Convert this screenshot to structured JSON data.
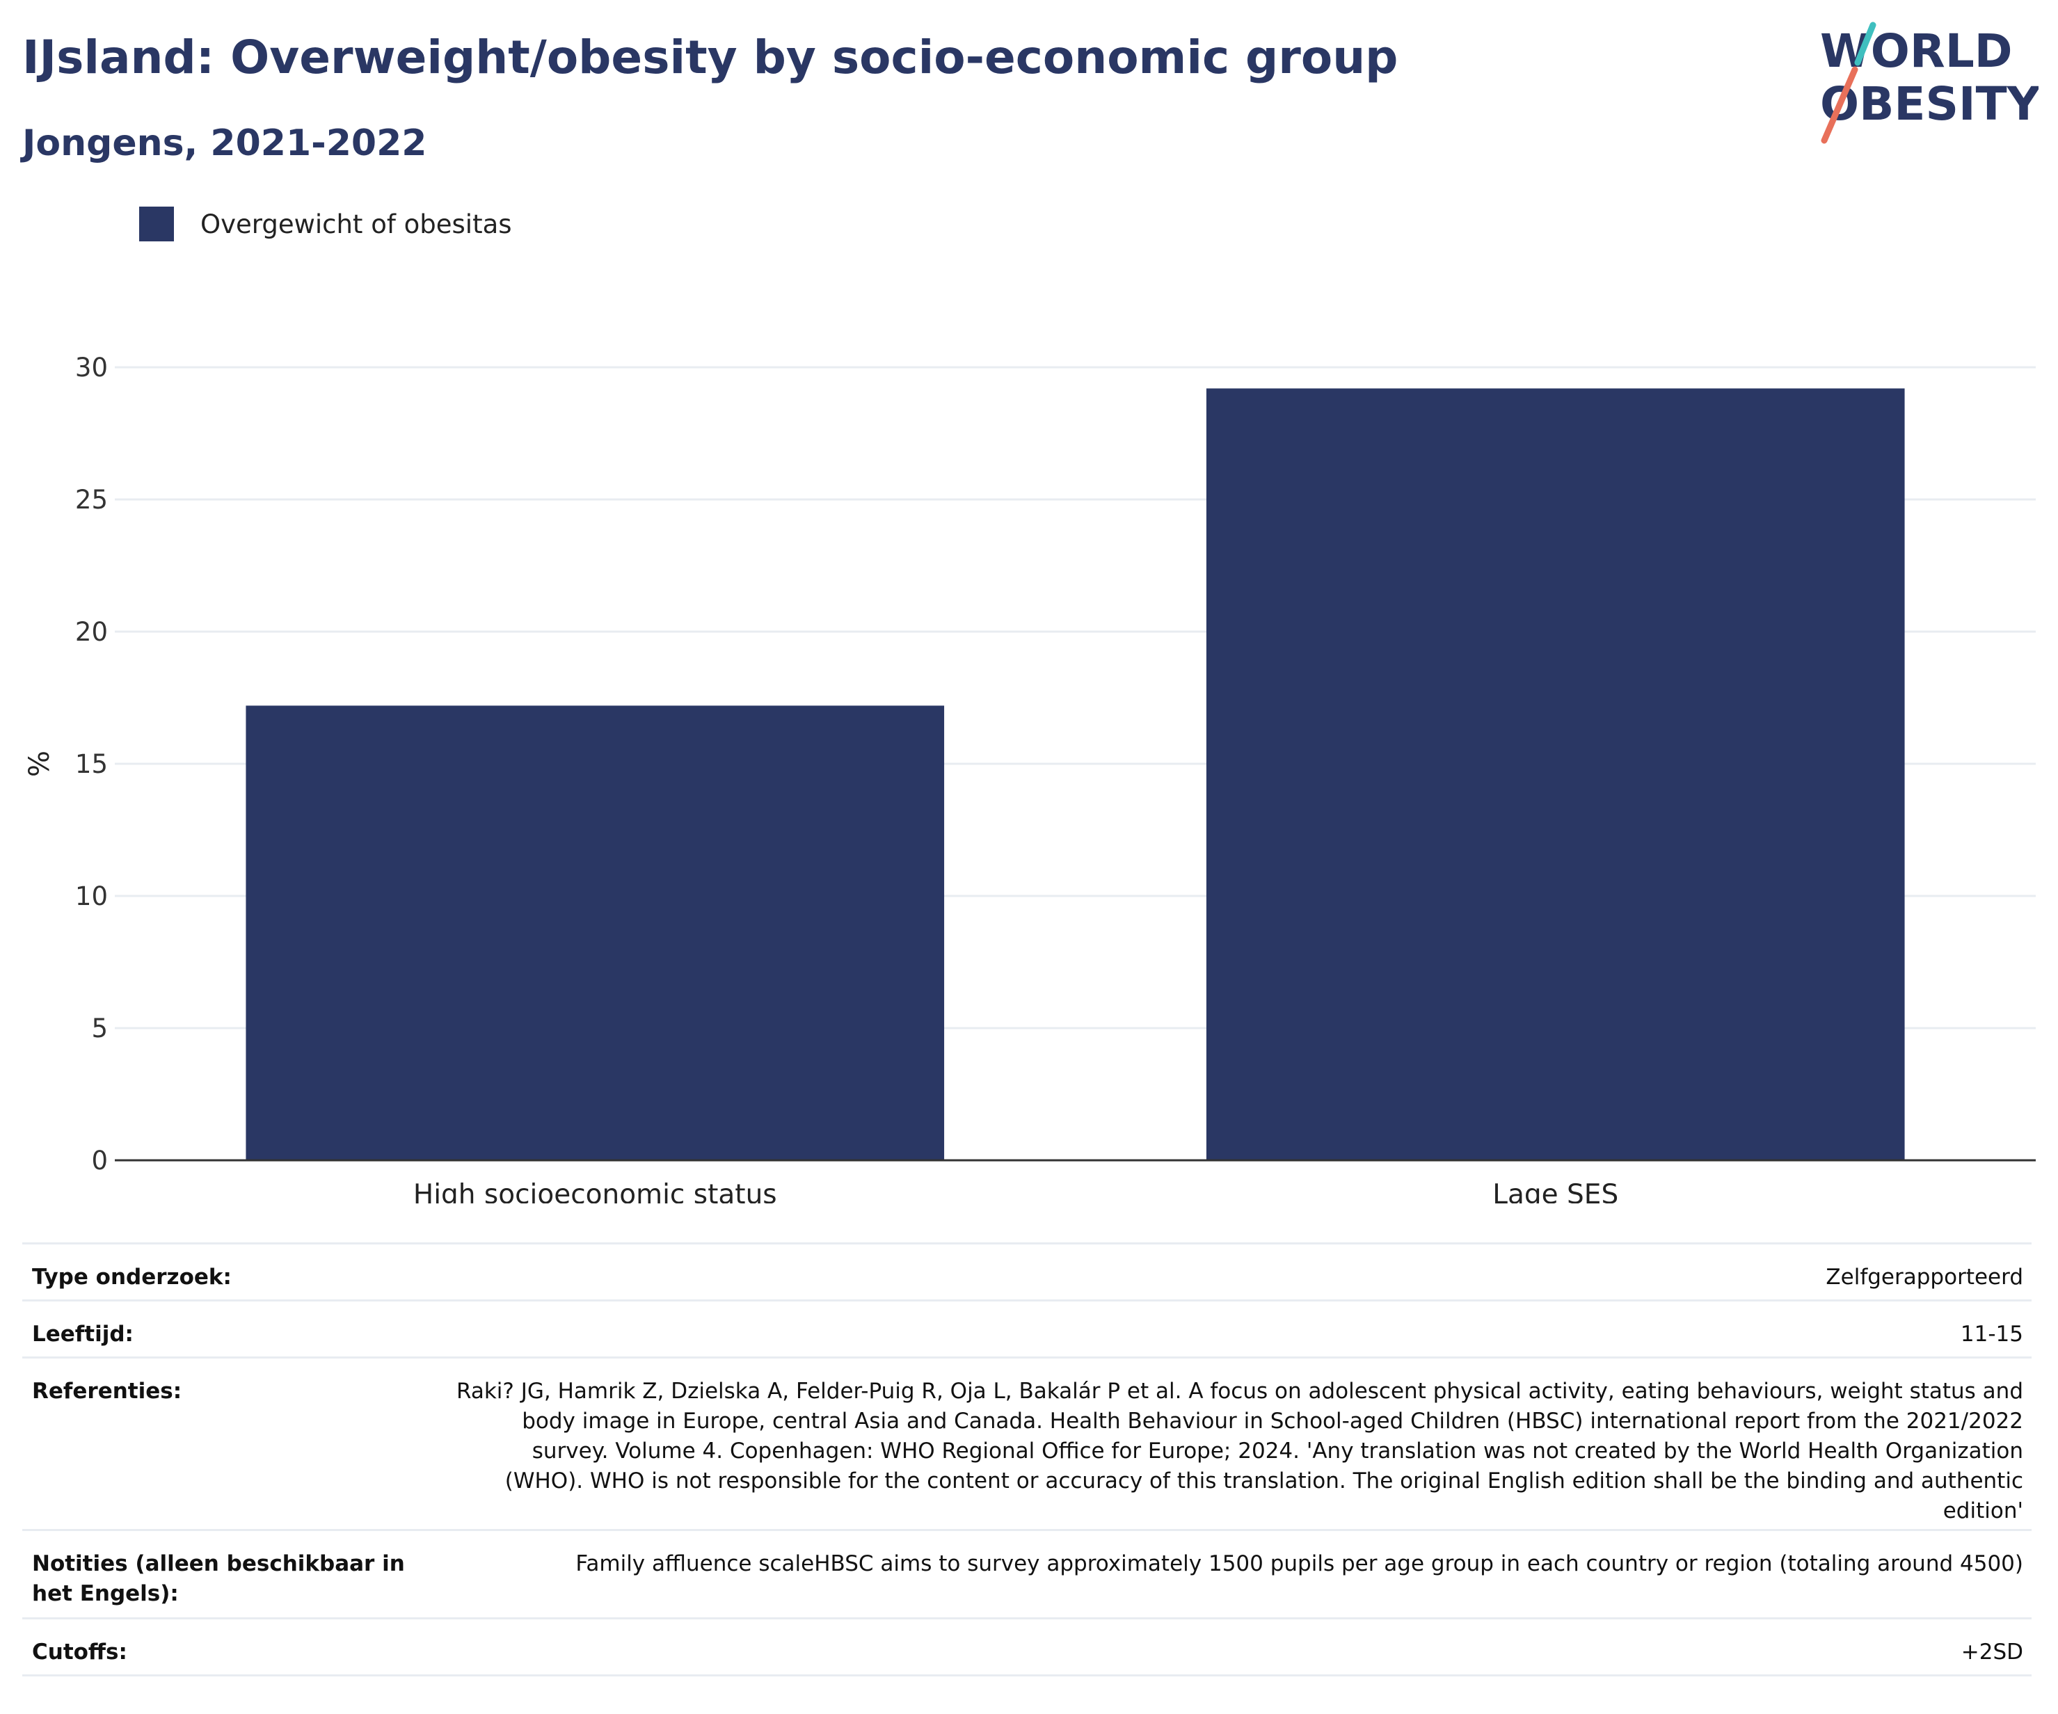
{
  "header": {
    "title": "IJsland: Overweight/obesity by socio-economic group",
    "subtitle": "Jongens, 2021-2022"
  },
  "logo": {
    "line1": "WORLD",
    "line2": "OBESITY",
    "accent_colors": [
      "#3fbfbf",
      "#e8705a"
    ]
  },
  "colors": {
    "bar": "#2a3764",
    "title": "#2a3764",
    "grid": "#e8ecf1"
  },
  "chart_data": {
    "type": "bar",
    "categories": [
      "High socioeconomic status",
      "Lage SES"
    ],
    "series": [
      {
        "name": "Overgewicht of obesitas",
        "values": [
          17.2,
          29.2
        ]
      }
    ],
    "ylabel": "%",
    "ylim": [
      0,
      30
    ],
    "yticks": [
      0,
      5,
      10,
      15,
      20,
      25,
      30
    ],
    "grid": true,
    "legend_position": "top-left"
  },
  "meta": [
    {
      "label": "Type onderzoek:",
      "value": "Zelfgerapporteerd"
    },
    {
      "label": "Leeftijd:",
      "value": "11-15"
    },
    {
      "label": "Referenties:",
      "value": "Raki? JG, Hamrik Z, Dzielska A, Felder-Puig R, Oja L, Bakalár P et al. A focus on adolescent physical activity, eating behaviours, weight status and body image in Europe, central Asia and Canada. Health Behaviour in School-aged Children (HBSC) international report from the 2021/2022 survey. Volume 4. Copenhagen: WHO Regional Office for Europe; 2024. 'Any translation was not created by the World Health Organization (WHO). WHO is not responsible for the content or accuracy of this translation. The original English edition shall be the binding and authentic edition'"
    },
    {
      "label": "Notities (alleen beschikbaar in het Engels):",
      "value": "Family affluence scaleHBSC aims to survey approximately 1500 pupils per age group in each country or region (totaling around 4500)"
    },
    {
      "label": "Cutoffs:",
      "value": "+2SD"
    }
  ]
}
